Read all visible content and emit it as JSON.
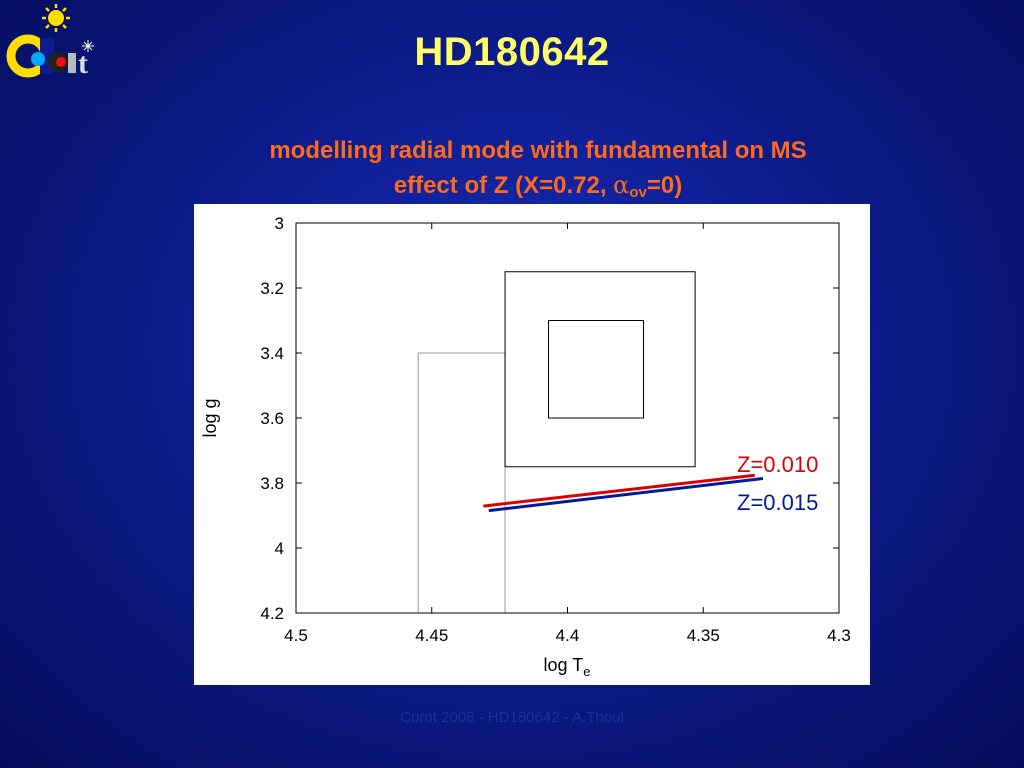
{
  "slide": {
    "title": "HD180642",
    "subtitle_line1": "modelling radial mode with fundamental on MS",
    "subtitle_line2_prefix": "effect of Z  (X=0.72, ",
    "subtitle_alpha": "α",
    "subtitle_sub": "ov",
    "subtitle_line2_suffix": "=0)",
    "footer": "Corot 2008 - HD180642 - A.Thoul"
  },
  "logo": {
    "icon": "corot-logo-icon",
    "text": "Corot"
  },
  "colors": {
    "title": "#ffff66",
    "subtitle": "#ff6a1a",
    "z010": "#dd0000",
    "z015": "#001a99",
    "box": "#000000",
    "gray_box": "#999999"
  },
  "chart_data": {
    "type": "line",
    "xlabel": "log T",
    "xlabel_sub": "e",
    "ylabel": "log g",
    "xlim": [
      4.5,
      4.3
    ],
    "ylim": [
      4.2,
      3.0
    ],
    "x_reversed": true,
    "y_reversed": true,
    "xticks": [
      4.5,
      4.45,
      4.4,
      4.35,
      4.3
    ],
    "xtick_labels": [
      "4.5",
      "4.45",
      "4.4",
      "4.35",
      "4.3"
    ],
    "yticks": [
      3.0,
      3.2,
      3.4,
      3.6,
      3.8,
      4.0,
      4.2
    ],
    "ytick_labels": [
      "3",
      "3.2",
      "3.4",
      "3.6",
      "3.8",
      "4",
      "4.2"
    ],
    "grid": false,
    "series": [
      {
        "name": "Z=0.010",
        "color": "#dd0000",
        "x": [
          4.431,
          4.331
        ],
        "y": [
          3.871,
          3.776
        ]
      },
      {
        "name": "Z=0.015",
        "color": "#001a99",
        "x": [
          4.429,
          4.328
        ],
        "y": [
          3.885,
          3.786
        ]
      }
    ],
    "error_boxes": [
      {
        "name": "outer-box",
        "x": [
          4.423,
          4.353
        ],
        "y": [
          3.15,
          3.75
        ],
        "color": "#000000"
      },
      {
        "name": "inner-box",
        "x": [
          4.407,
          4.372
        ],
        "y": [
          3.3,
          3.6
        ],
        "color": "#000000"
      },
      {
        "name": "gray-box",
        "x": [
          4.455,
          4.423
        ],
        "y": [
          3.4,
          4.2
        ],
        "color": "#999999"
      }
    ]
  }
}
